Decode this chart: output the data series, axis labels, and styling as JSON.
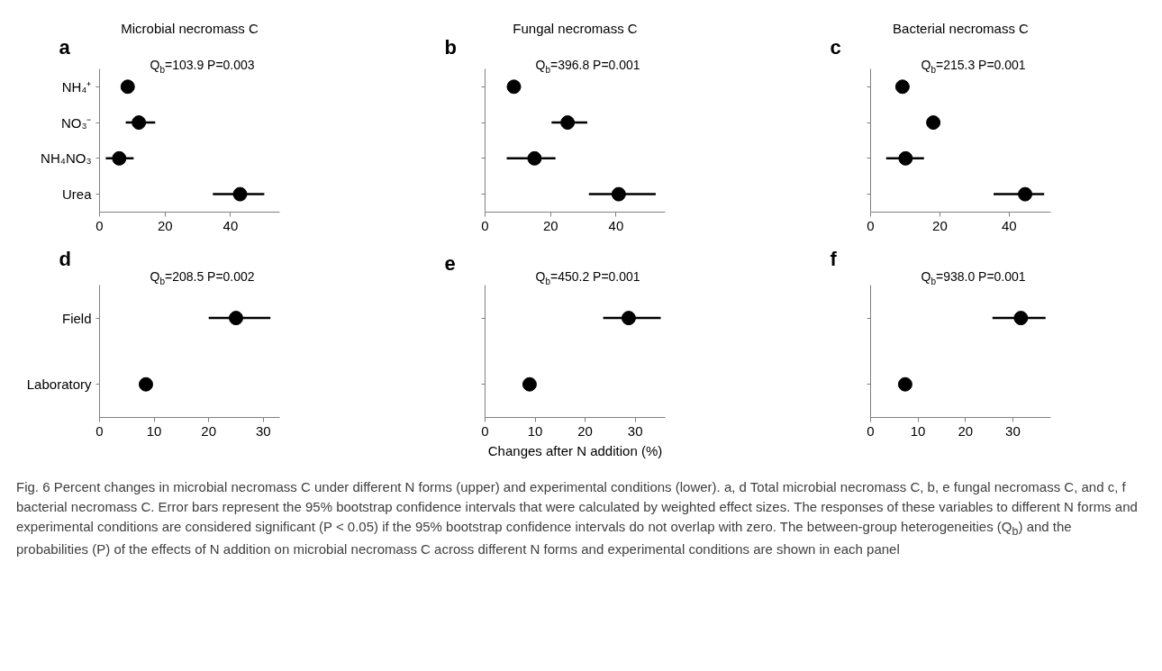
{
  "chart_data": [
    {
      "type": "scatter",
      "orientation": "horizontal",
      "title": "Microbial necromass C",
      "categories": [
        "NH₄⁺",
        "NO₃⁻",
        "NH₄NO₃",
        "Urea"
      ],
      "series": [
        {
          "color": "#000000",
          "values": [
            8.6,
            12.0,
            6.0,
            42.9
          ],
          "errors": [
            null,
            [
              8.0,
              17.0
            ],
            [
              1.9,
              10.4
            ],
            [
              34.6,
              50.3
            ]
          ]
        }
      ],
      "xlim": [
        0,
        55
      ],
      "xticks": [
        0,
        20,
        40
      ],
      "marker": "circle",
      "annotations": [
        "a",
        "Q$_{b}$=103.9   P=0.003"
      ]
    },
    {
      "type": "scatter",
      "orientation": "horizontal",
      "title": "Fungal necromass C",
      "categories": [
        null,
        null,
        null,
        null
      ],
      "tick_labels": "x",
      "series": [
        {
          "color": "#000000",
          "values": [
            8.8,
            25.2,
            15.1,
            40.8
          ],
          "errors": [
            null,
            [
              20.3,
              31.2
            ],
            [
              6.6,
              21.5
            ],
            [
              31.7,
              52.1
            ]
          ]
        }
      ],
      "xlim": [
        0,
        55
      ],
      "xticks": [
        0,
        20,
        40
      ],
      "marker": "circle",
      "annotations": [
        "b",
        "Q$_{b}$=396.8   P=0.001"
      ]
    },
    {
      "type": "scatter",
      "orientation": "horizontal",
      "title": "Bacterial necromass C",
      "categories": [
        null,
        null,
        null,
        null
      ],
      "tick_labels": "x",
      "series": [
        {
          "color": "#000000",
          "values": [
            9.2,
            18.1,
            10.1,
            44.6
          ],
          "errors": [
            null,
            null,
            [
              4.5,
              15.4
            ],
            [
              35.5,
              50.1
            ]
          ]
        }
      ],
      "xlim": [
        0,
        52
      ],
      "xticks": [
        0,
        20,
        40
      ],
      "marker": "circle",
      "annotations": [
        "c",
        "Q$_{b}$=215.3  P=0.001"
      ]
    },
    {
      "type": "scatter",
      "orientation": "horizontal",
      "categories": [
        "Field",
        "Laboratory"
      ],
      "series": [
        {
          "color": "#000000",
          "values": [
            25.0,
            8.5
          ],
          "errors": [
            [
              20.0,
              31.3
            ],
            null
          ]
        }
      ],
      "xlim": [
        0,
        33
      ],
      "xticks": [
        0,
        10,
        20,
        30
      ],
      "marker": "circle",
      "annotations": [
        "d",
        "Q$_{b}$=208.5   P=0.002"
      ]
    },
    {
      "type": "scatter",
      "orientation": "horizontal",
      "categories": [
        null,
        null
      ],
      "tick_labels": "x",
      "xlabel": "Changes after N addition (%)",
      "series": [
        {
          "color": "#000000",
          "values": [
            28.7,
            8.9
          ],
          "errors": [
            [
              23.6,
              35.1
            ],
            null
          ]
        }
      ],
      "xlim": [
        0,
        36
      ],
      "xticks": [
        0,
        10,
        20,
        30
      ],
      "marker": "circle",
      "annotations": [
        "e",
        "Q$_{b}$=450.2   P=0.001"
      ]
    },
    {
      "type": "scatter",
      "orientation": "horizontal",
      "categories": [
        null,
        null
      ],
      "tick_labels": "x",
      "series": [
        {
          "color": "#000000",
          "values": [
            31.7,
            7.3
          ],
          "errors": [
            [
              25.7,
              36.9
            ],
            null
          ]
        }
      ],
      "xlim": [
        0,
        38
      ],
      "xticks": [
        0,
        10,
        20,
        30
      ],
      "marker": "circle",
      "annotations": [
        "f",
        "Q$_{b}$=938.0  P=0.001",
        "Fig. 6 Percent changes in microbial necromass C under different N forms (upper) and experimental conditions (lower). a, d Total microbial necromass C, b, e fungal necromass C, and c, f bacterial necromass C. Error bars represent the 95% bootstrap confidence intervals that were calculated by weighted effect sizes. The responses of these variables to different N forms and experimental conditions are considered significant (P < 0.05) if the 95% bootstrap confidence intervals do not overlap with zero. The between-group heterogeneities (Q$_{b}$) and the probabilities (P) of the effects of N addition on microbial necromass C across different N forms and experimental conditions are shown in each panel"
      ]
    }
  ]
}
